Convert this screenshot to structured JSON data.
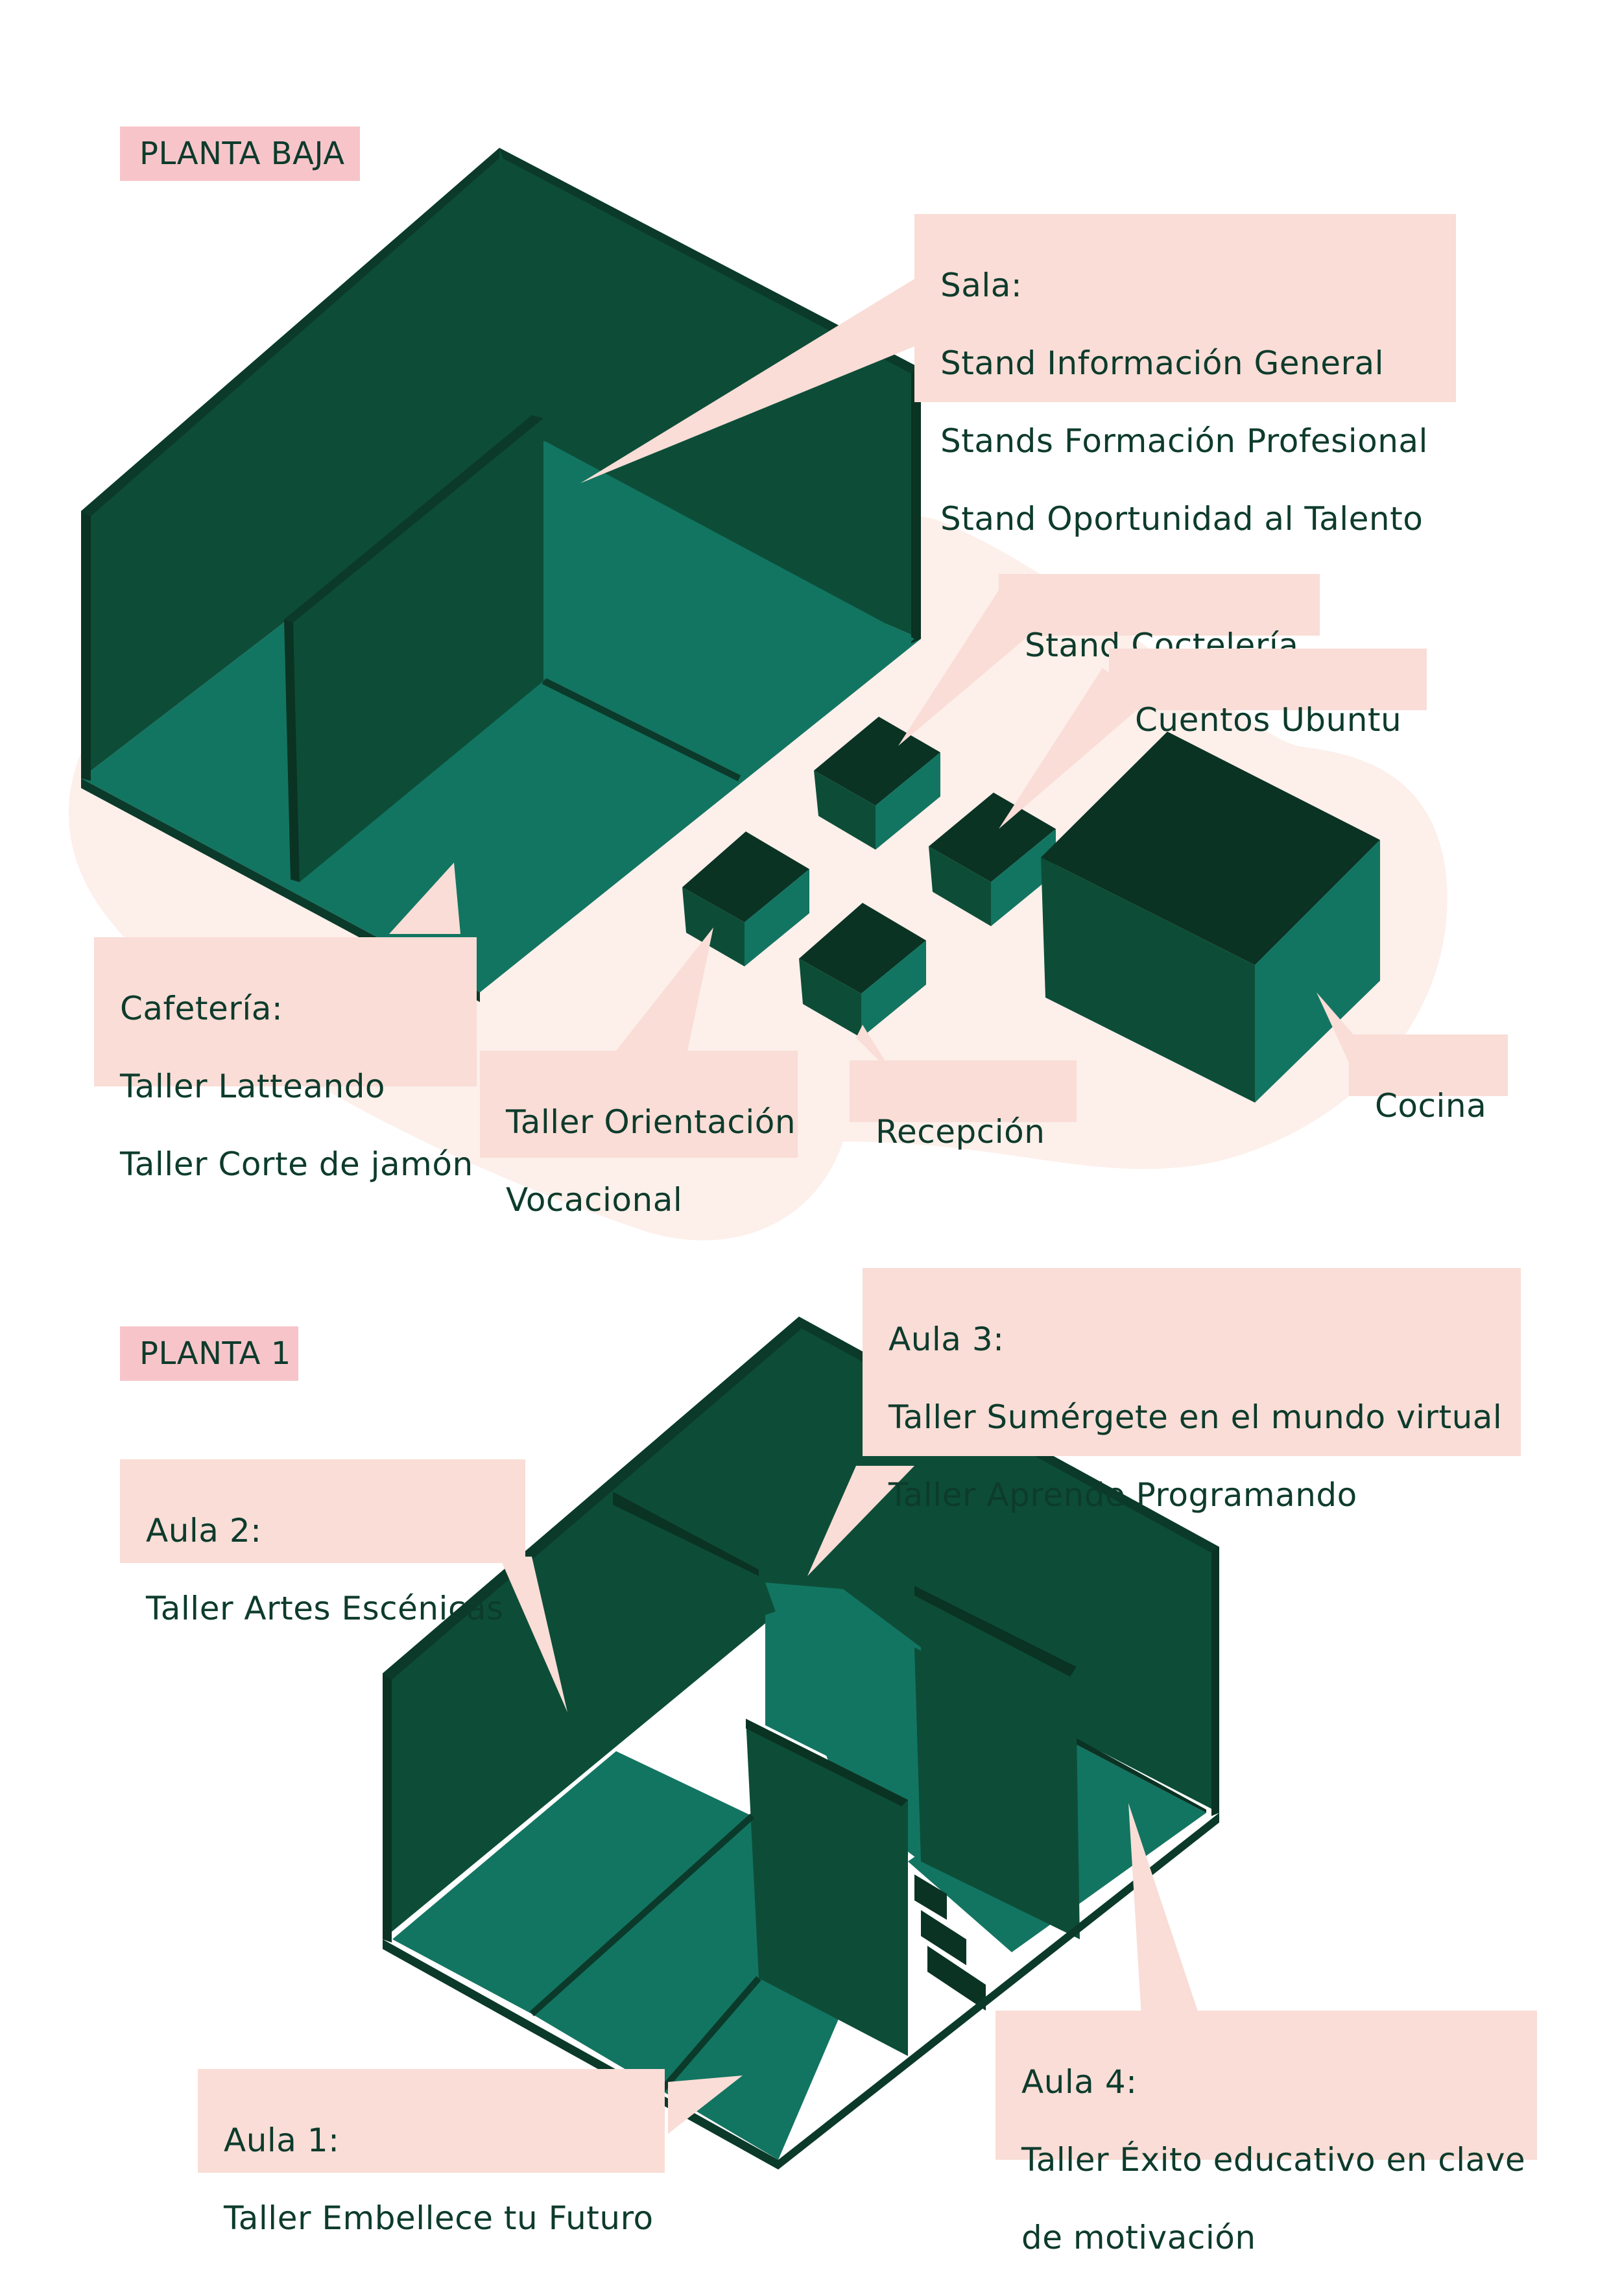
{
  "colors": {
    "wall_dark": "#0d4d38",
    "wall_darkest": "#0a3324",
    "floor": "#127561",
    "wall_edge": "#0b3a2a",
    "label_bg": "#f9ddd6",
    "tag_bg": "#f7c5c9",
    "blob_bg": "#fdefea",
    "text": "#0d3b2c"
  },
  "ground_floor": {
    "tag": "PLANTA BAJA",
    "labels": {
      "sala": [
        "Sala:",
        "Stand Información General",
        "Stands Formación Profesional",
        "Stand Oportunidad al Talento"
      ],
      "cocteleria": [
        "Stand Coctelería"
      ],
      "ubuntu": [
        "Cuentos Ubuntu"
      ],
      "cafeteria": [
        "Cafetería:",
        "Taller Latteando",
        "Taller Corte de jamón"
      ],
      "orientacion": [
        "Taller Orientación",
        "Vocacional"
      ],
      "recepcion": [
        "Recepción"
      ],
      "cocina": [
        "Cocina"
      ]
    }
  },
  "first_floor": {
    "tag": "PLANTA 1",
    "labels": {
      "aula3": [
        "Aula 3:",
        "Taller Sumérgete en el mundo virtual",
        "Taller Aprende Programando"
      ],
      "aula2": [
        "Aula 2:",
        "Taller Artes Escénicas"
      ],
      "aula1": [
        "Aula 1:",
        "Taller Embellece tu Futuro"
      ],
      "aula4": [
        "Aula 4:",
        "Taller Éxito educativo en clave",
        "de motivación"
      ]
    }
  }
}
